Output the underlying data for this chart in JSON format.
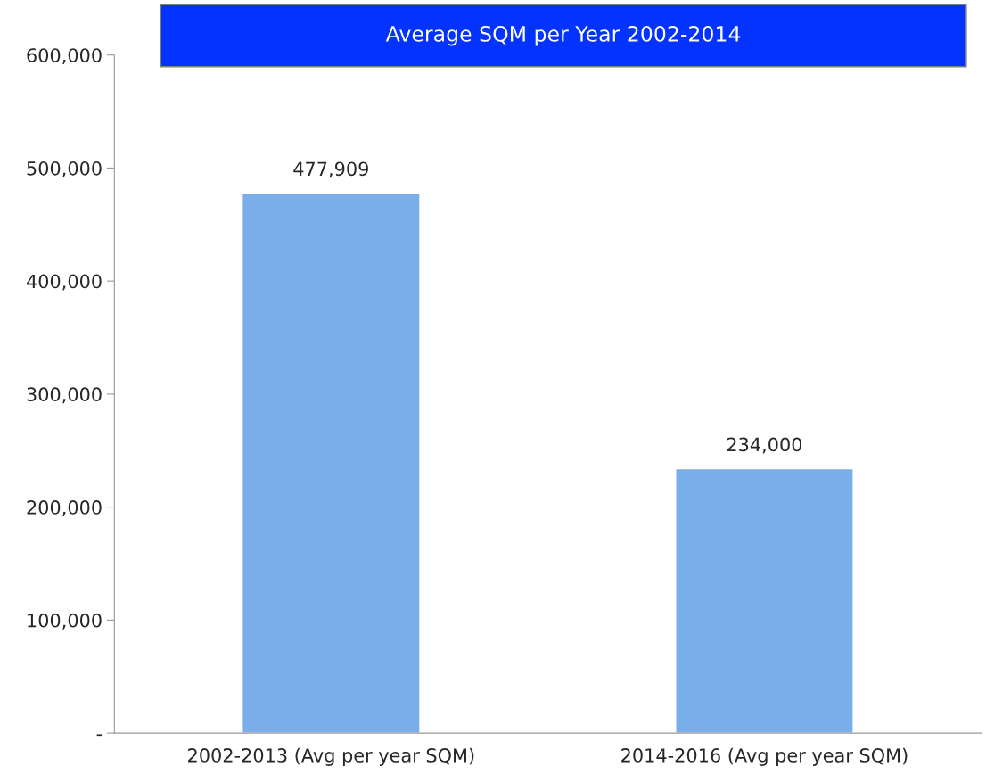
{
  "chart_data": {
    "type": "bar",
    "title": "Average SQM per Year 2002-2014",
    "categories": [
      "2002-2013 (Avg per year SQM)",
      "2014-2016 (Avg per year SQM)"
    ],
    "values": [
      477909,
      234000
    ],
    "color": "#79aee8",
    "value_labels": [
      "477,909",
      "234,000"
    ],
    "ylim": [
      0,
      600000
    ],
    "yticks": [
      {
        "value": 0,
        "label": "-"
      },
      {
        "value": 100000,
        "label": "100,000"
      },
      {
        "value": 200000,
        "label": "200,000"
      },
      {
        "value": 300000,
        "label": "300,000"
      },
      {
        "value": 400000,
        "label": "400,000"
      },
      {
        "value": 500000,
        "label": "500,000"
      },
      {
        "value": 600000,
        "label": "600,000"
      }
    ],
    "grid": false,
    "legend": false
  }
}
